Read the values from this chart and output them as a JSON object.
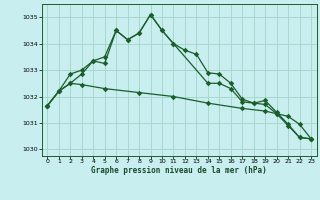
{
  "title": "Graphe pression niveau de la mer (hPa)",
  "bg_color": "#c8eef0",
  "grid_color": "#a8d8cc",
  "line_color": "#1a5e2a",
  "xlim": [
    -0.5,
    23.5
  ],
  "ylim": [
    1029.75,
    1035.5
  ],
  "yticks": [
    1030,
    1031,
    1032,
    1033,
    1034,
    1035
  ],
  "xticks": [
    0,
    1,
    2,
    3,
    4,
    5,
    6,
    7,
    8,
    9,
    10,
    11,
    12,
    13,
    14,
    15,
    16,
    17,
    18,
    19,
    20,
    21,
    22,
    23
  ],
  "series1_x": [
    0,
    1,
    2,
    3,
    4,
    5,
    6,
    7,
    8,
    9,
    10,
    11,
    12,
    13,
    14,
    15,
    16,
    17,
    18,
    19,
    20,
    21,
    22,
    23
  ],
  "series1_y": [
    1031.65,
    1032.2,
    1032.5,
    1032.85,
    1033.35,
    1033.25,
    1034.5,
    1034.15,
    1034.4,
    1035.1,
    1034.5,
    1034.0,
    1033.75,
    1033.6,
    1032.9,
    1032.85,
    1032.5,
    1031.9,
    1031.75,
    1031.85,
    1031.4,
    1030.95,
    1030.45,
    1030.4
  ],
  "series2_x": [
    0,
    1,
    2,
    3,
    4,
    5,
    6,
    7,
    8,
    9,
    10,
    11,
    14,
    15,
    16,
    17,
    18,
    19,
    20,
    21,
    22,
    23
  ],
  "series2_y": [
    1031.65,
    1032.2,
    1032.85,
    1033.0,
    1033.35,
    1033.5,
    1034.5,
    1034.15,
    1034.4,
    1035.1,
    1034.5,
    1034.0,
    1032.5,
    1032.5,
    1032.3,
    1031.8,
    1031.75,
    1031.7,
    1031.35,
    1030.9,
    1030.45,
    1030.4
  ],
  "series3_x": [
    0,
    1,
    2,
    3,
    5,
    8,
    11,
    14,
    17,
    19,
    20,
    21,
    22,
    23
  ],
  "series3_y": [
    1031.65,
    1032.2,
    1032.5,
    1032.45,
    1032.3,
    1032.15,
    1032.0,
    1031.75,
    1031.55,
    1031.45,
    1031.35,
    1031.25,
    1030.95,
    1030.4
  ]
}
